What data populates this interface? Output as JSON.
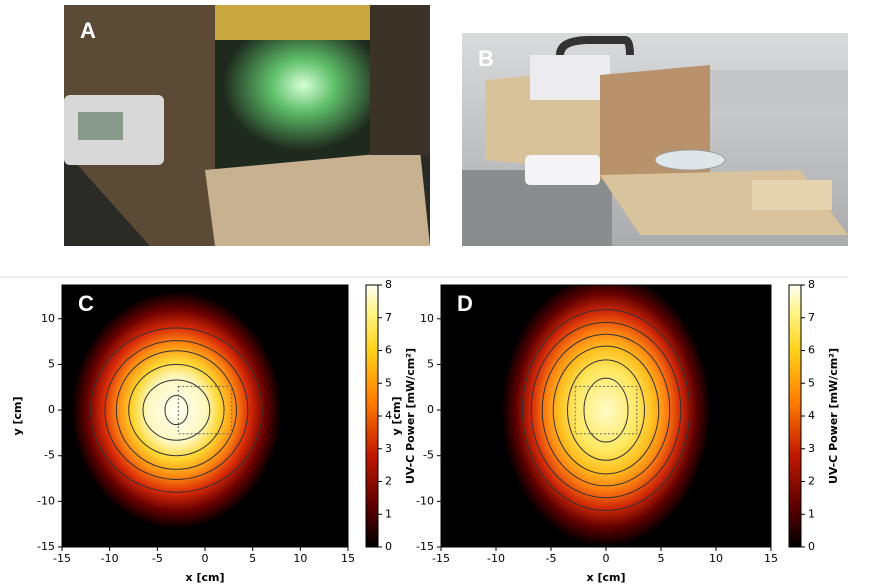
{
  "photos": [
    {
      "label": "A"
    },
    {
      "label": "B"
    }
  ],
  "chart_data": [
    {
      "type": "heatmap",
      "panel_label": "C",
      "xlabel": "x [cm]",
      "ylabel": "y [cm]",
      "xlim": [
        -15,
        15
      ],
      "ylim": [
        -15,
        13.7
      ],
      "xticks": [
        -15,
        -10,
        -5,
        0,
        5,
        10,
        15
      ],
      "yticks": [
        -15,
        -10,
        -5,
        0,
        5,
        10
      ],
      "colorbar": {
        "label": "UV-C Power [mW/cm²]",
        "lim": [
          0,
          8
        ],
        "ticks": [
          0,
          1,
          2,
          3,
          4,
          5,
          6,
          7,
          8
        ]
      }
    },
    {
      "type": "heatmap",
      "panel_label": "D",
      "xlabel": "x [cm]",
      "ylabel": "y [cm]",
      "xlim": [
        -15,
        15
      ],
      "ylim": [
        -15,
        13.7
      ],
      "xticks": [
        -15,
        -10,
        -5,
        0,
        5,
        10,
        15
      ],
      "yticks": [
        -15,
        -10,
        -5,
        0,
        5,
        10
      ],
      "colorbar": {
        "label": "UV-C Power [mW/cm²]",
        "lim": [
          0,
          8
        ],
        "ticks": [
          0,
          1,
          2,
          3,
          4,
          5,
          6,
          7,
          8
        ]
      }
    }
  ]
}
